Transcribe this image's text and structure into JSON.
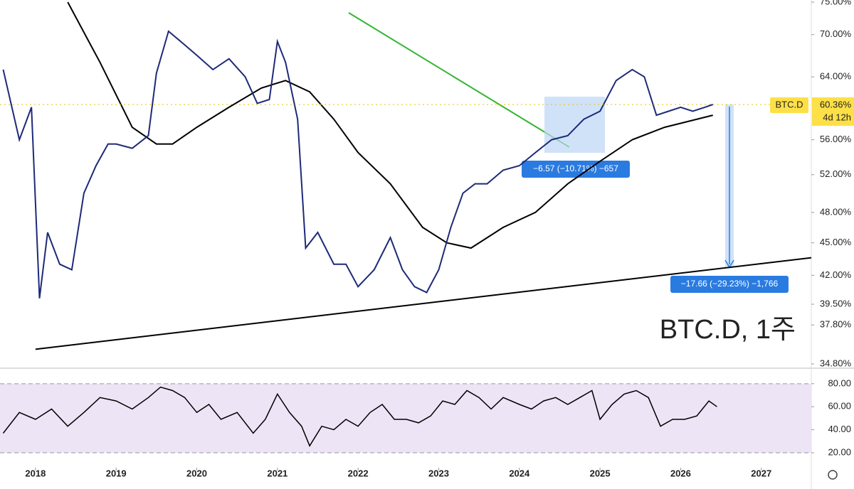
{
  "chart_data": [
    {
      "type": "line",
      "title": "BTC.D, 1주",
      "log_scale": true,
      "xlim": [
        2017.56,
        2027.62
      ],
      "xticks": [
        2018,
        2019,
        2020,
        2021,
        2022,
        2023,
        2024,
        2025,
        2026,
        2027
      ],
      "ylim": [
        34.8,
        75
      ],
      "yticks": [
        {
          "value": 34.8,
          "label": "34.80%"
        },
        {
          "value": 37.8,
          "label": "37.80%"
        },
        {
          "value": 39.5,
          "label": "39.50%"
        },
        {
          "value": 42,
          "label": "42.00%"
        },
        {
          "value": 45,
          "label": "45.00%"
        },
        {
          "value": 48,
          "label": "48.00%"
        },
        {
          "value": 52,
          "label": "52.00%"
        },
        {
          "value": 56,
          "label": "56.00%"
        },
        {
          "value": 64,
          "label": "64.00%"
        },
        {
          "value": 70,
          "label": "70.00%"
        },
        {
          "value": 75,
          "label": "75.00%"
        }
      ],
      "symbol": "BTC.D",
      "price_label": "60.36%",
      "countdown": "4d 12h",
      "measures": [
        "−6.57 (−10.71%) −657",
        "−17.66 (−29.23%) −1,766"
      ],
      "series": [
        {
          "color": "#000000",
          "x": [
            2018.4,
            2018.8,
            2019.2,
            2019.5,
            2019.7,
            2020.0,
            2020.4,
            2020.8,
            2021.1,
            2021.4,
            2021.7,
            2022.0,
            2022.4,
            2022.8,
            2023.1,
            2023.4,
            2023.8,
            2024.2,
            2024.6,
            2025.0,
            2025.4,
            2025.8,
            2026.4
          ],
          "values": [
            75,
            66,
            57.5,
            55.5,
            55.5,
            57.5,
            60,
            62.5,
            63.5,
            62,
            58.5,
            54.5,
            51,
            46.5,
            45,
            44.5,
            46.5,
            48,
            51,
            53.5,
            56,
            57.5,
            59
          ]
        },
        {
          "color": "#000000",
          "x": [
            2018.0,
            2027.62
          ],
          "values": [
            35.9,
            43.6
          ]
        },
        {
          "name": "BTC.D",
          "color": "#1e2a78",
          "x": [
            2017.6,
            2017.8,
            2017.95,
            2018.05,
            2018.15,
            2018.3,
            2018.45,
            2018.6,
            2018.75,
            2018.9,
            2019.0,
            2019.2,
            2019.4,
            2019.5,
            2019.65,
            2019.8,
            2020.0,
            2020.2,
            2020.4,
            2020.6,
            2020.75,
            2020.9,
            2021.0,
            2021.1,
            2021.25,
            2021.35,
            2021.5,
            2021.7,
            2021.85,
            2022.0,
            2022.2,
            2022.4,
            2022.55,
            2022.7,
            2022.85,
            2023.0,
            2023.15,
            2023.3,
            2023.45,
            2023.6,
            2023.8,
            2024.0,
            2024.2,
            2024.4,
            2024.6,
            2024.8,
            2025.0,
            2025.2,
            2025.4,
            2025.55,
            2025.7,
            2025.85,
            2026.0,
            2026.15,
            2026.3,
            2026.4
          ],
          "values": [
            65,
            56,
            60,
            40,
            46,
            43,
            42.5,
            50,
            53,
            55.5,
            55.5,
            55,
            56.5,
            64.5,
            70.5,
            69,
            67,
            65,
            66.5,
            64,
            60.5,
            61,
            69,
            66,
            58.5,
            44.5,
            46,
            43,
            43,
            41,
            42.5,
            45.5,
            42.5,
            41,
            40.5,
            42.5,
            46.5,
            50,
            51,
            51,
            52.5,
            53,
            54.5,
            56,
            56.5,
            58.5,
            59.5,
            63.5,
            65,
            64,
            59,
            59.5,
            60,
            59.5,
            60,
            60.36
          ]
        }
      ]
    },
    {
      "type": "line",
      "xlim": [
        2017.56,
        2027.62
      ],
      "ylim": [
        5.8,
        91
      ],
      "yticks": [
        {
          "value": 20,
          "label": "20.00"
        },
        {
          "value": 40,
          "label": "40.00"
        },
        {
          "value": 60,
          "label": "60.00"
        },
        {
          "value": 80,
          "label": "80.00"
        }
      ],
      "series": [
        {
          "color": "#000000",
          "x": [
            2017.6,
            2017.8,
            2018.0,
            2018.2,
            2018.4,
            2018.6,
            2018.8,
            2019.0,
            2019.2,
            2019.4,
            2019.55,
            2019.7,
            2019.85,
            2020.0,
            2020.15,
            2020.3,
            2020.5,
            2020.7,
            2020.85,
            2021.0,
            2021.15,
            2021.3,
            2021.4,
            2021.55,
            2021.7,
            2021.85,
            2022.0,
            2022.15,
            2022.3,
            2022.45,
            2022.6,
            2022.75,
            2022.9,
            2023.05,
            2023.2,
            2023.35,
            2023.5,
            2023.65,
            2023.8,
            2024.0,
            2024.15,
            2024.3,
            2024.45,
            2024.6,
            2024.75,
            2024.9,
            2025.0,
            2025.15,
            2025.3,
            2025.45,
            2025.6,
            2025.75,
            2025.9,
            2026.05,
            2026.2,
            2026.35,
            2026.45
          ],
          "values": [
            37,
            55,
            49,
            58,
            43,
            55,
            68,
            65,
            58,
            68,
            77,
            74,
            68,
            55,
            62,
            49,
            55,
            37,
            49,
            71,
            55,
            43,
            26,
            43,
            40,
            49,
            43,
            55,
            62,
            49,
            49,
            46,
            52,
            65,
            62,
            74,
            68,
            58,
            68,
            62,
            58,
            65,
            68,
            62,
            68,
            74,
            49,
            62,
            71,
            74,
            68,
            43,
            49,
            49,
            52,
            65,
            60
          ]
        }
      ]
    }
  ]
}
